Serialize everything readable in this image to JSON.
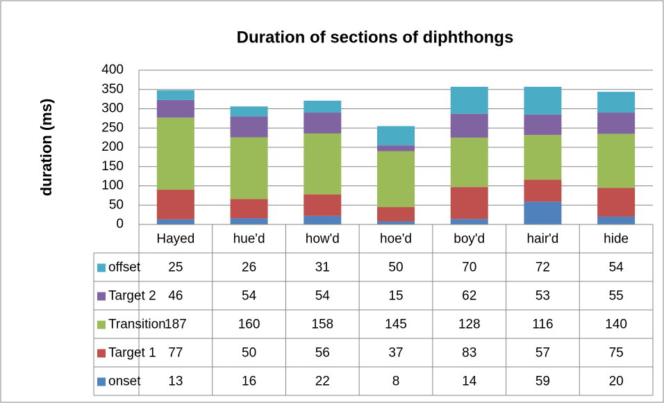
{
  "chart_data": {
    "type": "bar",
    "stacked": true,
    "title": "Duration of sections of diphthongs",
    "y_label": "duration (ms)",
    "categories": [
      "Hayed",
      "hue'd",
      "how'd",
      "hoe'd",
      "boy'd",
      "hair'd",
      "hide"
    ],
    "series": [
      {
        "name": "onset",
        "color": "#4f81bd",
        "values": [
          13,
          16,
          22,
          8,
          14,
          59,
          20
        ]
      },
      {
        "name": "Target 1",
        "color": "#c0504d",
        "values": [
          77,
          50,
          56,
          37,
          83,
          57,
          75
        ]
      },
      {
        "name": "Transition",
        "color": "#9bbb59",
        "values": [
          187,
          160,
          158,
          145,
          128,
          116,
          140
        ]
      },
      {
        "name": "Target 2",
        "color": "#8064a2",
        "values": [
          46,
          54,
          54,
          15,
          62,
          53,
          55
        ]
      },
      {
        "name": "offset",
        "color": "#4bacc6",
        "values": [
          25,
          26,
          31,
          50,
          70,
          72,
          54
        ]
      }
    ],
    "ylim": [
      0,
      400
    ],
    "yticks": [
      0,
      50,
      100,
      150,
      200,
      250,
      300,
      350,
      400
    ],
    "grid": true,
    "data_table": true
  }
}
